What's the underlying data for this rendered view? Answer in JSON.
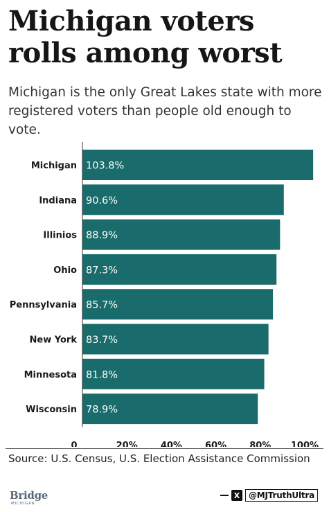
{
  "header": {
    "title": "Michigan voters rolls among worst",
    "subtitle": "Michigan is the only Great Lakes state with more registered voters than people old enough to vote."
  },
  "chart_data": {
    "type": "bar",
    "orientation": "horizontal",
    "categories": [
      "Michigan",
      "Indiana",
      "Illinios",
      "Ohio",
      "Pennsylvania",
      "New York",
      "Minnesota",
      "Wisconsin"
    ],
    "values": [
      103.8,
      90.6,
      88.9,
      87.3,
      85.7,
      83.7,
      81.8,
      78.9
    ],
    "value_labels": [
      "103.8%",
      "90.6%",
      "88.9%",
      "87.3%",
      "85.7%",
      "83.7%",
      "81.8%",
      "78.9%"
    ],
    "x_ticks": [
      0,
      20,
      40,
      60,
      80,
      100
    ],
    "x_tick_labels": [
      "0",
      "20%",
      "40%",
      "60%",
      "80%",
      "100%"
    ],
    "xlim": [
      0,
      105
    ],
    "bar_color": "#1a6b6b",
    "grid": false,
    "legend": "none"
  },
  "footer": {
    "source": "Source: U.S. Census, U.S. Election Assistance Commission",
    "logo_name": "Bridge",
    "logo_subtext": "MICHIGAN",
    "social_icon": "x-icon",
    "social_icon_glyph": "X",
    "social_handle": "@MJTruthUltra"
  }
}
